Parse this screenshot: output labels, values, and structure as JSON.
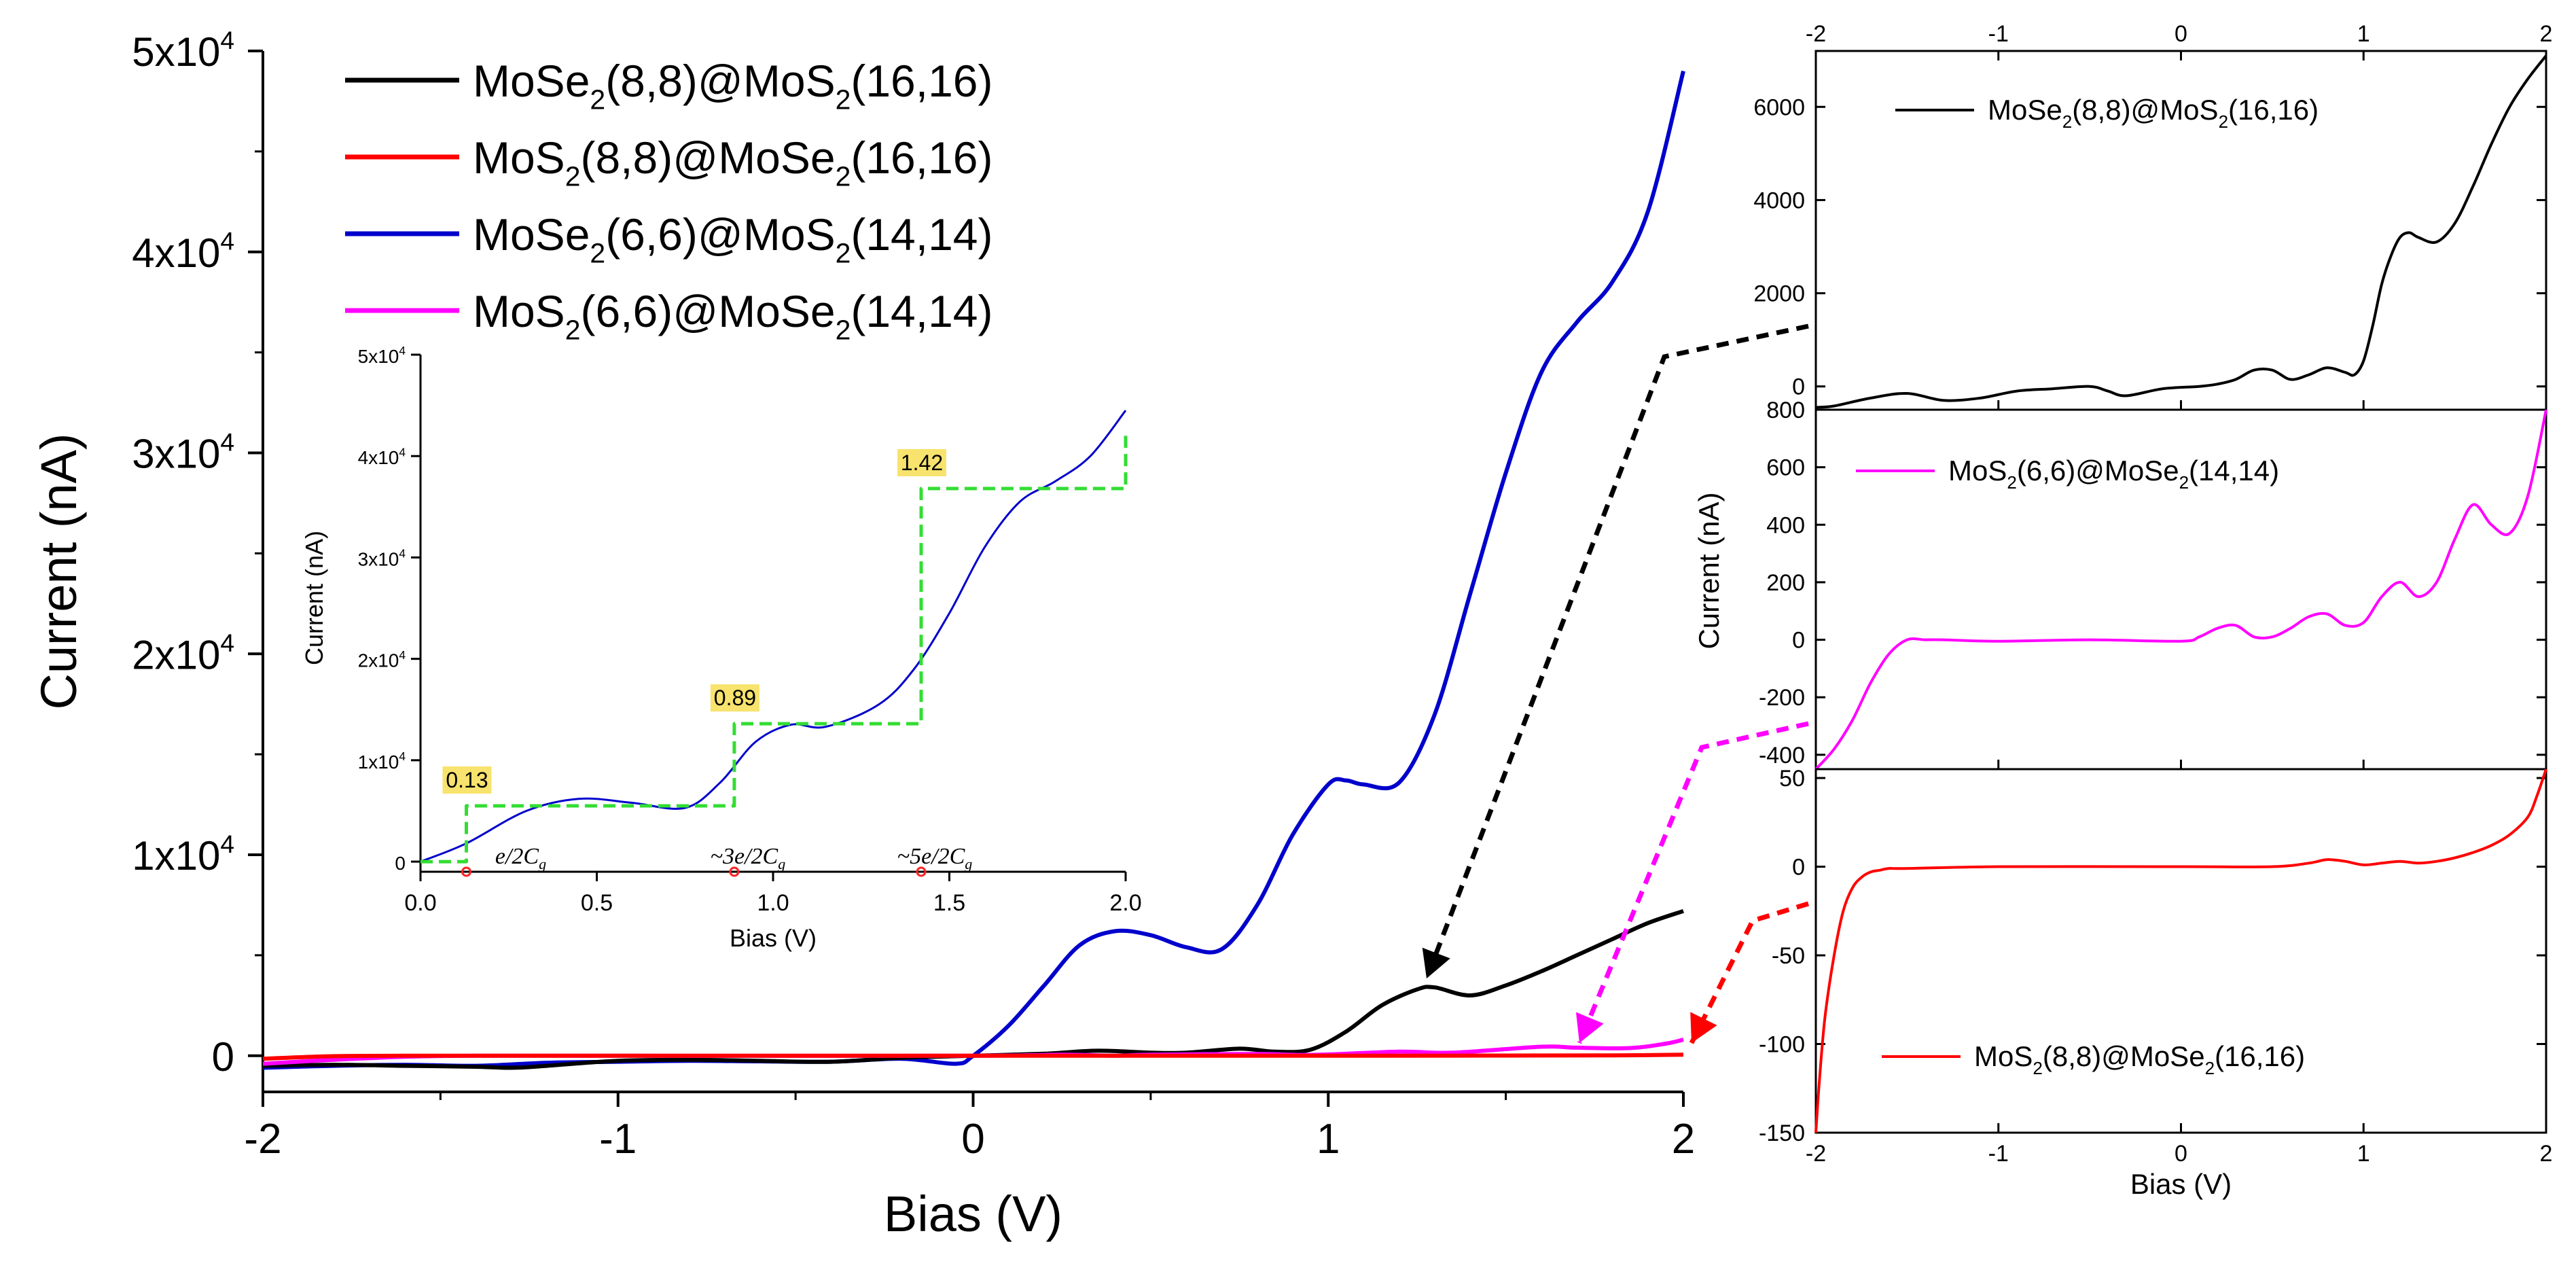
{
  "chart_data": [
    {
      "id": "main",
      "type": "line",
      "xlabel": "Bias (V)",
      "ylabel": "Current (nA)",
      "xlim": [
        -2,
        2
      ],
      "ylim": [
        -1800,
        50000
      ],
      "xticks": [
        "-2",
        "-1",
        "0",
        "1",
        "2"
      ],
      "yticks": [
        {
          "v": 0,
          "base": "0",
          "sup": ""
        },
        {
          "v": 10000,
          "base": "1x10",
          "sup": "4"
        },
        {
          "v": 20000,
          "base": "2x10",
          "sup": "4"
        },
        {
          "v": 30000,
          "base": "3x10",
          "sup": "4"
        },
        {
          "v": 40000,
          "base": "4x10",
          "sup": "4"
        },
        {
          "v": 50000,
          "base": "5x10",
          "sup": "4"
        }
      ],
      "legend": [
        {
          "color": "#000000",
          "parts": [
            "MoSe",
            "2",
            "(8,8)@MoS",
            "2",
            "(16,16)"
          ]
        },
        {
          "color": "#ff0000",
          "parts": [
            "MoS",
            "2",
            "(8,8)@MoSe",
            "2",
            "(16,16)"
          ]
        },
        {
          "color": "#0000cc",
          "parts": [
            "MoSe",
            "2",
            "(6,6)@MoS",
            "2",
            "(14,14)"
          ]
        },
        {
          "color": "#ff00ff",
          "parts": [
            "MoS",
            "2",
            "(6,6)@MoSe",
            "2",
            "(14,14)"
          ]
        }
      ],
      "series": [
        {
          "name": "MoSe2(6,6)@MoS2(14,14)",
          "color": "#0000cc",
          "x": [
            -2,
            -1.8,
            -1.6,
            -1.4,
            -1.2,
            -1.0,
            -0.8,
            -0.6,
            -0.4,
            -0.2,
            -0.05,
            0,
            0.1,
            0.2,
            0.3,
            0.4,
            0.5,
            0.6,
            0.7,
            0.8,
            0.9,
            1.0,
            1.05,
            1.1,
            1.2,
            1.3,
            1.4,
            1.5,
            1.6,
            1.7,
            1.8,
            1.9,
            2.0
          ],
          "y": [
            -600,
            -500,
            -450,
            -500,
            -350,
            -300,
            -250,
            -280,
            -300,
            -150,
            -400,
            0,
            1500,
            3500,
            5500,
            6200,
            6000,
            5400,
            5300,
            7500,
            11000,
            13500,
            13700,
            13500,
            13600,
            17000,
            23000,
            29000,
            34000,
            36500,
            38500,
            42000,
            49000
          ]
        },
        {
          "name": "MoSe2(8,8)@MoS2(16,16)",
          "color": "#000000",
          "x": [
            -2,
            -1.8,
            -1.6,
            -1.4,
            -1.3,
            -1.2,
            -1.0,
            -0.8,
            -0.6,
            -0.4,
            -0.2,
            0,
            0.2,
            0.35,
            0.5,
            0.6,
            0.75,
            0.85,
            0.95,
            1.05,
            1.15,
            1.25,
            1.3,
            1.4,
            1.5,
            1.6,
            1.7,
            1.8,
            1.9,
            2.0
          ],
          "y": [
            -500,
            -450,
            -500,
            -550,
            -600,
            -500,
            -250,
            -200,
            -250,
            -300,
            -100,
            0,
            100,
            250,
            150,
            150,
            350,
            200,
            300,
            1200,
            2500,
            3300,
            3400,
            3000,
            3500,
            4200,
            5000,
            5800,
            6600,
            7200
          ]
        },
        {
          "name": "MoS2(6,6)@MoSe2(14,14)",
          "color": "#ff00ff",
          "x": [
            -2,
            -1.8,
            -1.6,
            -1.4,
            -1.0,
            0,
            0.25,
            0.4,
            0.5,
            0.8,
            0.95,
            1.2,
            1.35,
            1.6,
            1.7,
            1.85,
            1.95,
            2.0
          ],
          "y": [
            -400,
            -200,
            -50,
            0,
            0,
            0,
            50,
            0,
            50,
            90,
            40,
            200,
            150,
            450,
            400,
            380,
            600,
            800
          ]
        },
        {
          "name": "MoS2(8,8)@MoSe2(16,16)",
          "color": "#ff0000",
          "x": [
            -2,
            -1.8,
            -1.6,
            -1.4,
            -1.0,
            0,
            1.0,
            1.5,
            1.8,
            1.9,
            2.0
          ],
          "y": [
            -150,
            -20,
            0,
            0,
            0,
            0,
            0,
            10,
            20,
            30,
            50
          ]
        }
      ]
    },
    {
      "id": "inset",
      "type": "line",
      "xlabel": "Bias (V)",
      "ylabel": "Current (nA)",
      "xlim": [
        0,
        2
      ],
      "ylim": [
        -1000,
        50000
      ],
      "xticks": [
        "0.0",
        "0.5",
        "1.0",
        "1.5",
        "2.0"
      ],
      "yticks": [
        {
          "v": 0,
          "base": "0",
          "sup": ""
        },
        {
          "v": 10000,
          "base": "1x10",
          "sup": "4"
        },
        {
          "v": 20000,
          "base": "2x10",
          "sup": "4"
        },
        {
          "v": 30000,
          "base": "3x10",
          "sup": "4"
        },
        {
          "v": 40000,
          "base": "4x10",
          "sup": "4"
        },
        {
          "v": 50000,
          "base": "5x10",
          "sup": "4"
        }
      ],
      "series": [
        {
          "name": "I-V",
          "color": "#0000cc",
          "x": [
            0,
            0.13,
            0.3,
            0.45,
            0.6,
            0.75,
            0.85,
            0.95,
            1.05,
            1.15,
            1.3,
            1.4,
            1.5,
            1.6,
            1.7,
            1.8,
            1.9,
            2.0
          ],
          "y": [
            0,
            1800,
            5000,
            6200,
            5800,
            5300,
            7800,
            11800,
            13500,
            13300,
            15500,
            19000,
            24500,
            31000,
            35500,
            37500,
            40000,
            44500
          ]
        },
        {
          "name": "staircase",
          "color": "#33dd33",
          "dashed": true,
          "x": [
            0,
            0.13,
            0.13,
            0.89,
            0.89,
            1.42,
            1.42,
            2.0,
            2.0
          ],
          "y": [
            0,
            0,
            5500,
            5500,
            13600,
            13600,
            36800,
            36800,
            42000
          ]
        }
      ],
      "annotations": [
        "0.13",
        "0.89",
        "1.42"
      ],
      "markers": [
        {
          "x": 0.13,
          "label": "e/2C",
          "sub": "g"
        },
        {
          "x": 0.89,
          "label": "~3e/2C",
          "sub": "g"
        },
        {
          "x": 1.42,
          "label": "~5e/2C",
          "sub": "g"
        }
      ]
    },
    {
      "id": "right-top",
      "type": "line",
      "xlim": [
        -2,
        2
      ],
      "ylim": [
        -500,
        7200
      ],
      "xticks": [
        "-2",
        "-1",
        "0",
        "1",
        "2"
      ],
      "yticks": [
        {
          "v": 0,
          "base": "0",
          "sup": ""
        },
        {
          "v": 2000,
          "base": "2000",
          "sup": ""
        },
        {
          "v": 4000,
          "base": "4000",
          "sup": ""
        },
        {
          "v": 6000,
          "base": "6000",
          "sup": ""
        }
      ],
      "legend": {
        "color": "#000000",
        "parts": [
          "MoSe",
          "2",
          "(8,8)@MoS",
          "2",
          "(16,16)"
        ]
      },
      "series": [
        {
          "name": "MoSe2(8,8)@MoS2(16,16)",
          "color": "#000000",
          "x": [
            -2,
            -1.9,
            -1.7,
            -1.5,
            -1.3,
            -1.1,
            -0.9,
            -0.7,
            -0.5,
            -0.4,
            -0.3,
            -0.1,
            0.1,
            0.2,
            0.3,
            0.4,
            0.5,
            0.6,
            0.7,
            0.8,
            0.9,
            0.95,
            1.0,
            1.05,
            1.1,
            1.15,
            1.2,
            1.25,
            1.3,
            1.4,
            1.5,
            1.6,
            1.7,
            1.8,
            1.9,
            2.0
          ],
          "y": [
            -450,
            -420,
            -250,
            -150,
            -300,
            -250,
            -100,
            -50,
            0,
            -100,
            -200,
            -50,
            0,
            50,
            150,
            350,
            350,
            150,
            250,
            400,
            300,
            250,
            550,
            1300,
            2200,
            2800,
            3200,
            3300,
            3200,
            3100,
            3500,
            4300,
            5200,
            6000,
            6600,
            7100
          ]
        }
      ]
    },
    {
      "id": "right-mid",
      "type": "line",
      "ylabel": "Current (nA)",
      "xlim": [
        -2,
        2
      ],
      "ylim": [
        -450,
        800
      ],
      "xticks": [],
      "yticks": [
        {
          "v": -400,
          "base": "-400",
          "sup": ""
        },
        {
          "v": -200,
          "base": "-200",
          "sup": ""
        },
        {
          "v": 0,
          "base": "0",
          "sup": ""
        },
        {
          "v": 200,
          "base": "200",
          "sup": ""
        },
        {
          "v": 400,
          "base": "400",
          "sup": ""
        },
        {
          "v": 600,
          "base": "600",
          "sup": ""
        },
        {
          "v": 800,
          "base": "800",
          "sup": ""
        }
      ],
      "legend": {
        "color": "#ff00ff",
        "parts": [
          "MoS",
          "2",
          "(6,6)@MoSe",
          "2",
          "(14,14)"
        ]
      },
      "series": [
        {
          "name": "MoS2(6,6)@MoSe2(14,14)",
          "color": "#ff00ff",
          "x": [
            -2,
            -1.9,
            -1.8,
            -1.7,
            -1.6,
            -1.5,
            -1.4,
            -1.3,
            -1.0,
            -0.5,
            0,
            0.1,
            0.2,
            0.3,
            0.4,
            0.5,
            0.6,
            0.7,
            0.8,
            0.9,
            1.0,
            1.1,
            1.2,
            1.3,
            1.4,
            1.5,
            1.6,
            1.7,
            1.8,
            1.9,
            2.0
          ],
          "y": [
            -450,
            -380,
            -280,
            -150,
            -50,
            0,
            0,
            0,
            -5,
            0,
            -5,
            10,
            40,
            50,
            10,
            10,
            40,
            80,
            90,
            50,
            60,
            150,
            200,
            150,
            200,
            350,
            470,
            400,
            370,
            500,
            800
          ]
        }
      ]
    },
    {
      "id": "right-bot",
      "type": "line",
      "xlabel": "Bias (V)",
      "xlim": [
        -2,
        2
      ],
      "ylim": [
        -150,
        55
      ],
      "xticks": [
        "-2",
        "-1",
        "0",
        "1",
        "2"
      ],
      "yticks": [
        {
          "v": -150,
          "base": "-150",
          "sup": ""
        },
        {
          "v": -100,
          "base": "-100",
          "sup": ""
        },
        {
          "v": -50,
          "base": "-50",
          "sup": ""
        },
        {
          "v": 0,
          "base": "0",
          "sup": ""
        },
        {
          "v": 50,
          "base": "50",
          "sup": ""
        }
      ],
      "legend": {
        "color": "#ff0000",
        "parts": [
          "MoS",
          "2",
          "(8,8)@MoSe",
          "2",
          "(16,16)"
        ]
      },
      "series": [
        {
          "name": "MoS2(8,8)@MoSe2(16,16)",
          "color": "#ff0000",
          "x": [
            -2,
            -1.98,
            -1.95,
            -1.9,
            -1.85,
            -1.8,
            -1.75,
            -1.7,
            -1.65,
            -1.6,
            -1.5,
            -1.0,
            0,
            0.5,
            0.7,
            0.8,
            0.9,
            1.0,
            1.1,
            1.2,
            1.3,
            1.4,
            1.5,
            1.6,
            1.7,
            1.8,
            1.9,
            1.95,
            2.0
          ],
          "y": [
            -150,
            -120,
            -85,
            -50,
            -25,
            -12,
            -6,
            -3,
            -2,
            -1,
            -1,
            0,
            0,
            0,
            2,
            4,
            3,
            1,
            2,
            3,
            2,
            3,
            5,
            8,
            12,
            18,
            28,
            40,
            55
          ]
        }
      ]
    }
  ]
}
